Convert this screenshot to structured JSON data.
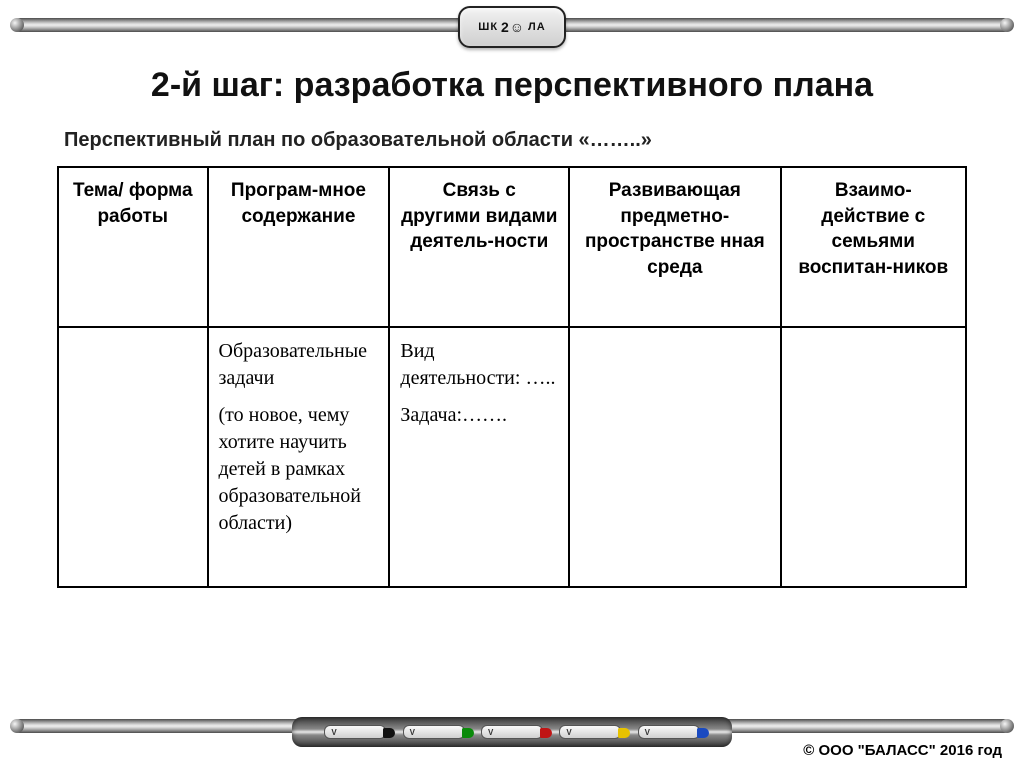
{
  "badge": {
    "left": "ШК",
    "mid": "2☺",
    "right": "ЛА"
  },
  "title": "2-й шаг: разработка перспективного плана",
  "subtitle": "Перспективный план по образовательной области «……..»",
  "table": {
    "headers": [
      "Тема/\nформа работы",
      "Програм-мное содержание",
      "Связь с другими видами деятель-ности",
      "Развивающая предметно-пространстве нная среда",
      "Взаимо-действие с семьями воспитан-ников"
    ],
    "row": {
      "c1": "",
      "c2a": "Образовательные задачи",
      "c2b": "(то новое, чему хотите научить детей в рамках образовательной области)",
      "c3a": "Вид деятельности: …..",
      "c3b": "Задача:…….",
      "c4": "",
      "c5": ""
    }
  },
  "copyright": "© ООО \"БАЛАСС\" 2016 год",
  "colors": {
    "text": "#000000",
    "border": "#000000",
    "background": "#ffffff"
  }
}
